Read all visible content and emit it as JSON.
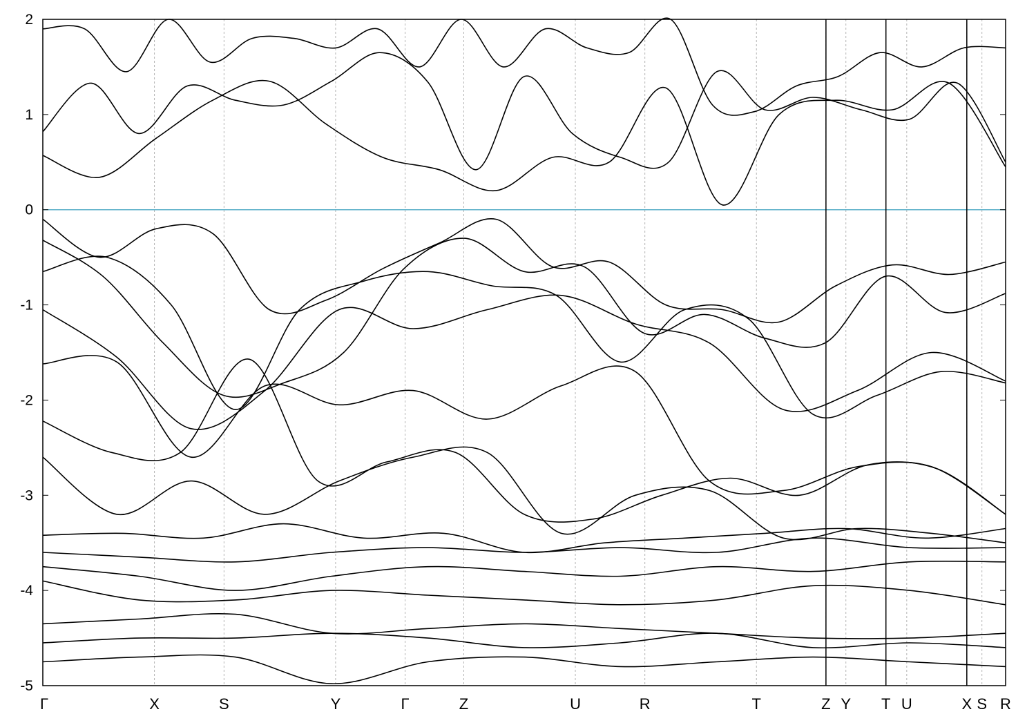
{
  "chart_data": {
    "type": "line",
    "title": "",
    "xlabel": "",
    "ylabel": "",
    "ylim": [
      -5,
      2
    ],
    "yticks": [
      2,
      1,
      0,
      -1,
      -2,
      -3,
      -4,
      -5
    ],
    "ytick_labels": [
      "2",
      "1",
      "0",
      "-1",
      "-2",
      "-3",
      "-4",
      "-5"
    ],
    "xlim": [
      0,
      1
    ],
    "kpath": [
      {
        "label": "Γ",
        "x": 0.0
      },
      {
        "label": "X",
        "x": 0.1159
      },
      {
        "label": "S",
        "x": 0.1882
      },
      {
        "label": "Y",
        "x": 0.3041
      },
      {
        "label": "Γ",
        "x": 0.3763
      },
      {
        "label": "Z",
        "x": 0.4372
      },
      {
        "label": "U",
        "x": 0.5531
      },
      {
        "label": "R",
        "x": 0.6253
      },
      {
        "label": "T",
        "x": 0.7412
      },
      {
        "label": "Z",
        "x": 0.8134
      },
      {
        "label": "Y",
        "x": 0.8341
      },
      {
        "label": "T",
        "x": 0.8757
      },
      {
        "label": "U",
        "x": 0.8973
      },
      {
        "label": "X",
        "x": 0.9597
      },
      {
        "label": "S",
        "x": 0.9754
      },
      {
        "label": "R",
        "x": 1.0
      }
    ],
    "path_breaks": [
      0.8134,
      0.8757,
      0.9597
    ],
    "fermi_level": 0,
    "grid": "vertical dashed at high-symmetry points",
    "colors": {
      "bands": "#000000",
      "fermi": "#5aafc8",
      "grid": "#b4b4b4"
    },
    "series": [
      {
        "y": [
          1.9,
          1.9,
          1.45,
          2.0,
          1.55,
          1.8,
          1.8,
          1.7,
          1.9,
          1.5,
          2.0,
          1.5,
          1.9,
          1.7,
          1.65,
          2.0,
          1.1,
          1.03,
          1.3,
          1.4,
          1.65,
          1.5,
          1.7,
          1.7
        ]
      },
      {
        "y": [
          0.82,
          1.33,
          0.8,
          1.3,
          1.15,
          1.1,
          1.35,
          1.65,
          1.34,
          0.42,
          1.4,
          0.8,
          0.55,
          0.5,
          1.45,
          1.05,
          1.18,
          1.05,
          0.95,
          1.33,
          0.5
        ]
      },
      {
        "y": [
          0.57,
          0.34,
          0.75,
          1.15,
          1.35,
          0.9,
          0.55,
          0.42,
          0.2,
          0.55,
          0.5,
          1.28,
          0.05,
          1.0,
          1.15,
          1.05,
          1.33,
          0.45
        ]
      },
      {
        "y": [
          -0.1,
          -0.5,
          -0.2,
          -0.25,
          -1.05,
          -0.95,
          -0.62,
          -0.35,
          -0.1,
          -0.6,
          -0.55,
          -1.0,
          -1.05,
          -1.18,
          -0.8,
          -0.58,
          -0.68,
          -0.55
        ]
      },
      {
        "y": [
          -0.32,
          -0.7,
          -1.4,
          -1.95,
          -1.82,
          -1.5,
          -0.62,
          -0.3,
          -0.65,
          -0.6,
          -1.3,
          -1.1,
          -1.35,
          -1.4,
          -0.7,
          -1.08,
          -0.88
        ]
      },
      {
        "y": [
          -0.65,
          -0.5,
          -1.0,
          -2.1,
          -1.05,
          -0.75,
          -0.65,
          -0.8,
          -0.9,
          -1.6,
          -1.05,
          -1.15,
          -2.15,
          -1.95,
          -1.7,
          -1.82
        ]
      },
      {
        "y": [
          -1.05,
          -1.55,
          -2.3,
          -1.9,
          -1.05,
          -1.25,
          -1.05,
          -0.9,
          -1.2,
          -1.4,
          -2.1,
          -1.9,
          -1.5,
          -1.8
        ]
      },
      {
        "y": [
          -1.62,
          -1.6,
          -2.6,
          -1.85,
          -2.05,
          -1.9,
          -2.2,
          -1.85,
          -1.7,
          -2.85,
          -2.95,
          -2.7,
          -2.7,
          -3.2
        ]
      },
      {
        "y": [
          -2.22,
          -2.55,
          -2.55,
          -1.57,
          -2.85,
          -2.65,
          -2.55,
          -3.2,
          -3.25,
          -3.0,
          -2.82,
          -3.0,
          -2.68,
          -2.72,
          -3.2
        ]
      },
      {
        "y": [
          -2.6,
          -3.2,
          -2.85,
          -3.2,
          -2.85,
          -2.6,
          -2.55,
          -3.4,
          -3.0,
          -2.95,
          -3.45,
          -3.35,
          -3.4,
          -3.5
        ]
      },
      {
        "y": [
          -3.42,
          -3.4,
          -3.45,
          -3.3,
          -3.45,
          -3.4,
          -3.6,
          -3.5,
          -3.45,
          -3.4,
          -3.35,
          -3.45,
          -3.35
        ]
      },
      {
        "y": [
          -3.6,
          -3.65,
          -3.7,
          -3.6,
          -3.55,
          -3.6,
          -3.55,
          -3.6,
          -3.45,
          -3.55,
          -3.55
        ]
      },
      {
        "y": [
          -3.75,
          -3.85,
          -4.0,
          -3.85,
          -3.75,
          -3.8,
          -3.85,
          -3.75,
          -3.8,
          -3.7,
          -3.7
        ]
      },
      {
        "y": [
          -3.9,
          -4.1,
          -4.1,
          -4.0,
          -4.05,
          -4.1,
          -4.15,
          -4.1,
          -3.95,
          -4.0,
          -4.15
        ]
      },
      {
        "y": [
          -4.35,
          -4.3,
          -4.25,
          -4.45,
          -4.4,
          -4.35,
          -4.4,
          -4.45,
          -4.5,
          -4.5,
          -4.45
        ]
      },
      {
        "y": [
          -4.55,
          -4.5,
          -4.5,
          -4.45,
          -4.5,
          -4.6,
          -4.55,
          -4.45,
          -4.6,
          -4.55,
          -4.6
        ]
      },
      {
        "y": [
          -4.75,
          -4.7,
          -4.7,
          -4.98,
          -4.75,
          -4.7,
          -4.8,
          -4.75,
          -4.7,
          -4.75,
          -4.8
        ]
      }
    ]
  }
}
